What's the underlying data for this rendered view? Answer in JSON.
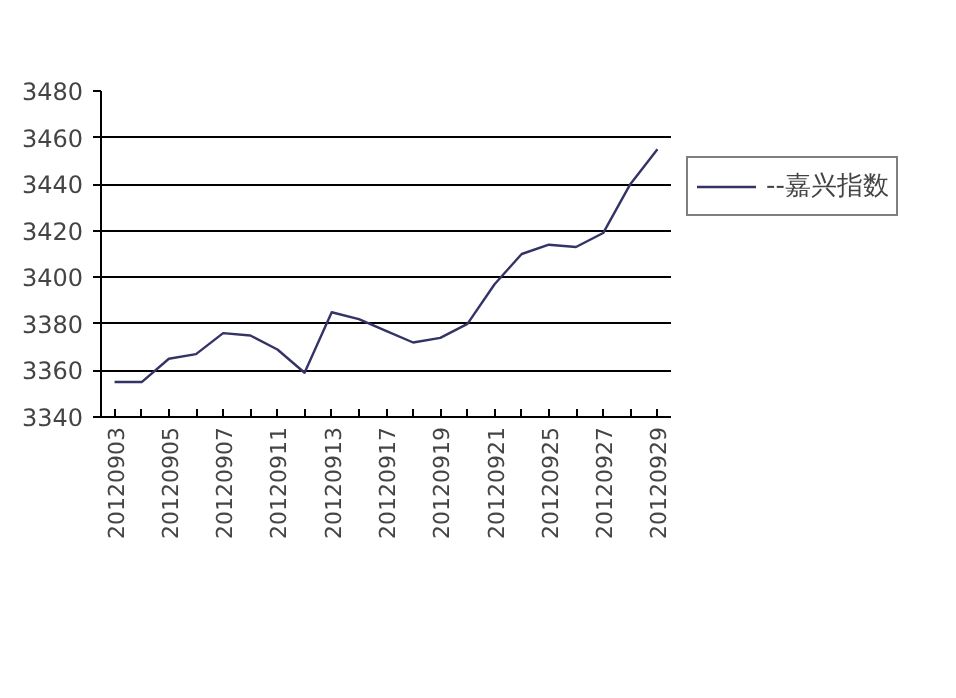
{
  "chart_data": {
    "type": "line",
    "categories": [
      "20120903",
      null,
      "20120905",
      null,
      "20120907",
      null,
      "20120911",
      null,
      "20120913",
      null,
      "20120917",
      null,
      "20120919",
      null,
      "20120921",
      null,
      "20120925",
      null,
      "20120927",
      null,
      "20120929"
    ],
    "series": [
      {
        "name": "--嘉兴指数",
        "color": "#333366",
        "values": [
          3355,
          3355,
          3365,
          3367,
          3376,
          3375,
          3369,
          3359,
          3385,
          3382,
          3377,
          3372,
          3374,
          3380,
          3397,
          3410,
          3414,
          3413,
          3419,
          3440,
          3455
        ]
      }
    ],
    "ylim": [
      3340,
      3480
    ],
    "yticks": [
      3340,
      3360,
      3380,
      3400,
      3420,
      3440,
      3460,
      3480
    ],
    "grid": "y",
    "legend": "right",
    "marker": "none",
    "line_style": "solid"
  }
}
